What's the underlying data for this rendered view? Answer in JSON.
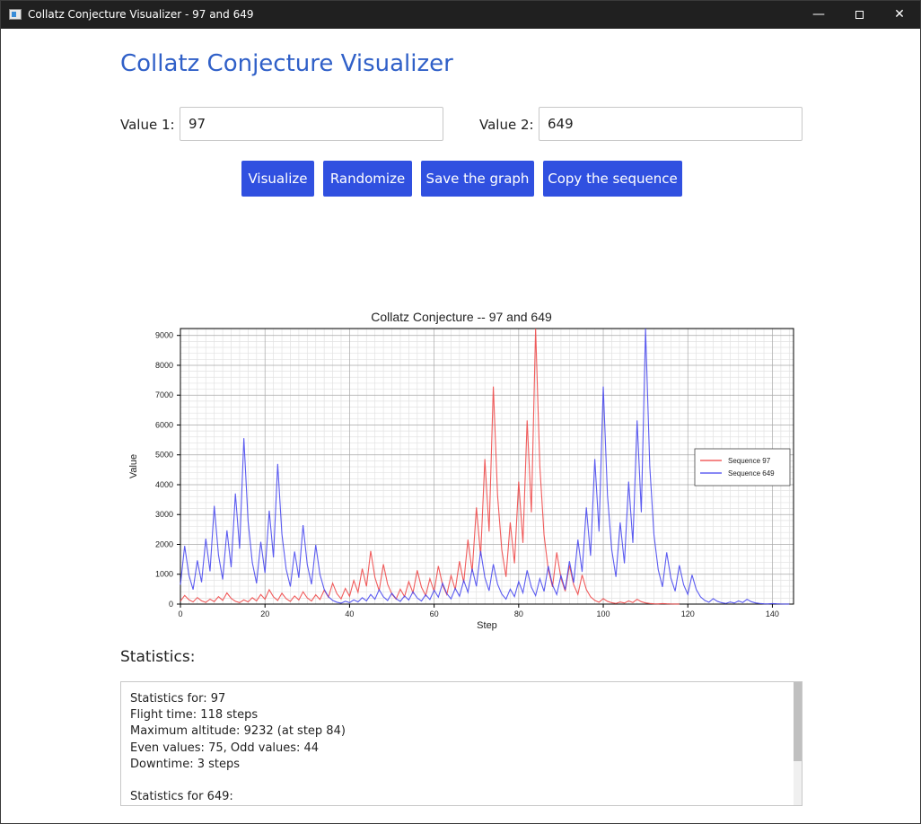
{
  "window": {
    "title": "Collatz Conjecture Visualizer - 97 and 649"
  },
  "app": {
    "title": "Collatz Conjecture Visualizer"
  },
  "inputs": {
    "value1": {
      "label": "Value 1:",
      "value": "97"
    },
    "value2": {
      "label": "Value 2:",
      "value": "649"
    }
  },
  "buttons": {
    "visualize": "Visualize",
    "randomize": "Randomize",
    "save": "Save the graph",
    "copy": "Copy the sequence"
  },
  "chart_data": {
    "type": "line",
    "title": "Collatz Conjecture -- 97 and 649",
    "xlabel": "Step",
    "ylabel": "Value",
    "xlim": [
      0,
      145
    ],
    "ylim": [
      0,
      9232
    ],
    "xticks": [
      0,
      20,
      40,
      60,
      80,
      100,
      120,
      140
    ],
    "yticks": [
      0,
      1000,
      2000,
      3000,
      4000,
      5000,
      6000,
      7000,
      8000,
      9000
    ],
    "grid": true,
    "legend_position": "right",
    "series": [
      {
        "name": "Sequence 97",
        "color": "#ef4040",
        "start": 97
      },
      {
        "name": "Sequence 649",
        "color": "#4040ef",
        "start": 649
      }
    ]
  },
  "statistics": {
    "label": "Statistics:",
    "lines": [
      "Statistics for: 97",
      "Flight time: 118 steps",
      "Maximum altitude: 9232 (at step 84)",
      "Even values: 75, Odd values: 44",
      "Downtime: 3 steps",
      "",
      "Statistics for 649:"
    ]
  }
}
